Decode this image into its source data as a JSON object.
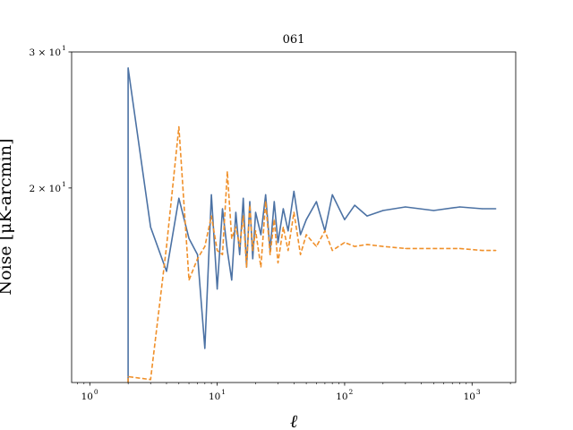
{
  "chart_data": {
    "type": "line",
    "title": "061",
    "xlabel": "ℓ",
    "ylabel": "Noise [μK-arcmin]",
    "xscale": "log",
    "yscale": "log",
    "xlim": [
      0.72,
      2200
    ],
    "ylim": [
      11.2,
      30
    ],
    "grid": false,
    "x_ticks": [
      {
        "base": "10",
        "exp": "0",
        "value": 1
      },
      {
        "base": "10",
        "exp": "1",
        "value": 10
      },
      {
        "base": "10",
        "exp": "2",
        "value": 100
      },
      {
        "base": "10",
        "exp": "3",
        "value": 1000
      }
    ],
    "y_ticks": [
      {
        "base": "2 × 10",
        "exp": "1",
        "value": 20
      },
      {
        "base": "3 × 10",
        "exp": "1",
        "value": 30
      }
    ],
    "series": [
      {
        "style": "solid",
        "color": "#4c72a4",
        "x": [
          2,
          3,
          4,
          5,
          6,
          7,
          8,
          9,
          10,
          11,
          12,
          13,
          14,
          15,
          16,
          17,
          18,
          19,
          20,
          22,
          24,
          26,
          28,
          30,
          33,
          36,
          40,
          45,
          50,
          60,
          70,
          80,
          100,
          120,
          150,
          200,
          300,
          500,
          800,
          1200,
          1536
        ],
        "y": [
          28.6,
          17.8,
          15.6,
          19.4,
          17.2,
          16.4,
          12.4,
          19.6,
          14.8,
          18.8,
          16.6,
          15.2,
          18.6,
          16.4,
          19.4,
          15.8,
          19.2,
          16.2,
          18.6,
          17.4,
          19.6,
          16.6,
          19.2,
          17.0,
          18.8,
          17.6,
          19.8,
          17.4,
          18.2,
          19.2,
          17.6,
          19.6,
          18.2,
          19.0,
          18.4,
          18.7,
          18.9,
          18.7,
          18.9,
          18.8,
          18.8
        ],
        "spike_from": 11.2
      },
      {
        "style": "dashed",
        "color": "#f0902a",
        "x": [
          2,
          3,
          4,
          5,
          6,
          7,
          8,
          9,
          10,
          11,
          12,
          13,
          14,
          15,
          16,
          17,
          18,
          19,
          20,
          22,
          24,
          26,
          28,
          30,
          33,
          36,
          40,
          45,
          50,
          60,
          70,
          80,
          100,
          120,
          150,
          200,
          300,
          500,
          800,
          1200,
          1536
        ],
        "y": [
          11.4,
          11.3,
          16.8,
          24.0,
          15.2,
          16.2,
          16.8,
          18.4,
          16.6,
          16.4,
          21.0,
          17.2,
          17.8,
          16.8,
          18.4,
          15.8,
          19.0,
          16.6,
          17.6,
          15.8,
          19.2,
          16.4,
          18.2,
          16.0,
          17.8,
          16.6,
          18.6,
          16.4,
          17.4,
          16.8,
          17.6,
          16.6,
          17.0,
          16.8,
          16.9,
          16.8,
          16.7,
          16.7,
          16.7,
          16.6,
          16.6
        ],
        "spike_from": 11.2
      }
    ]
  }
}
